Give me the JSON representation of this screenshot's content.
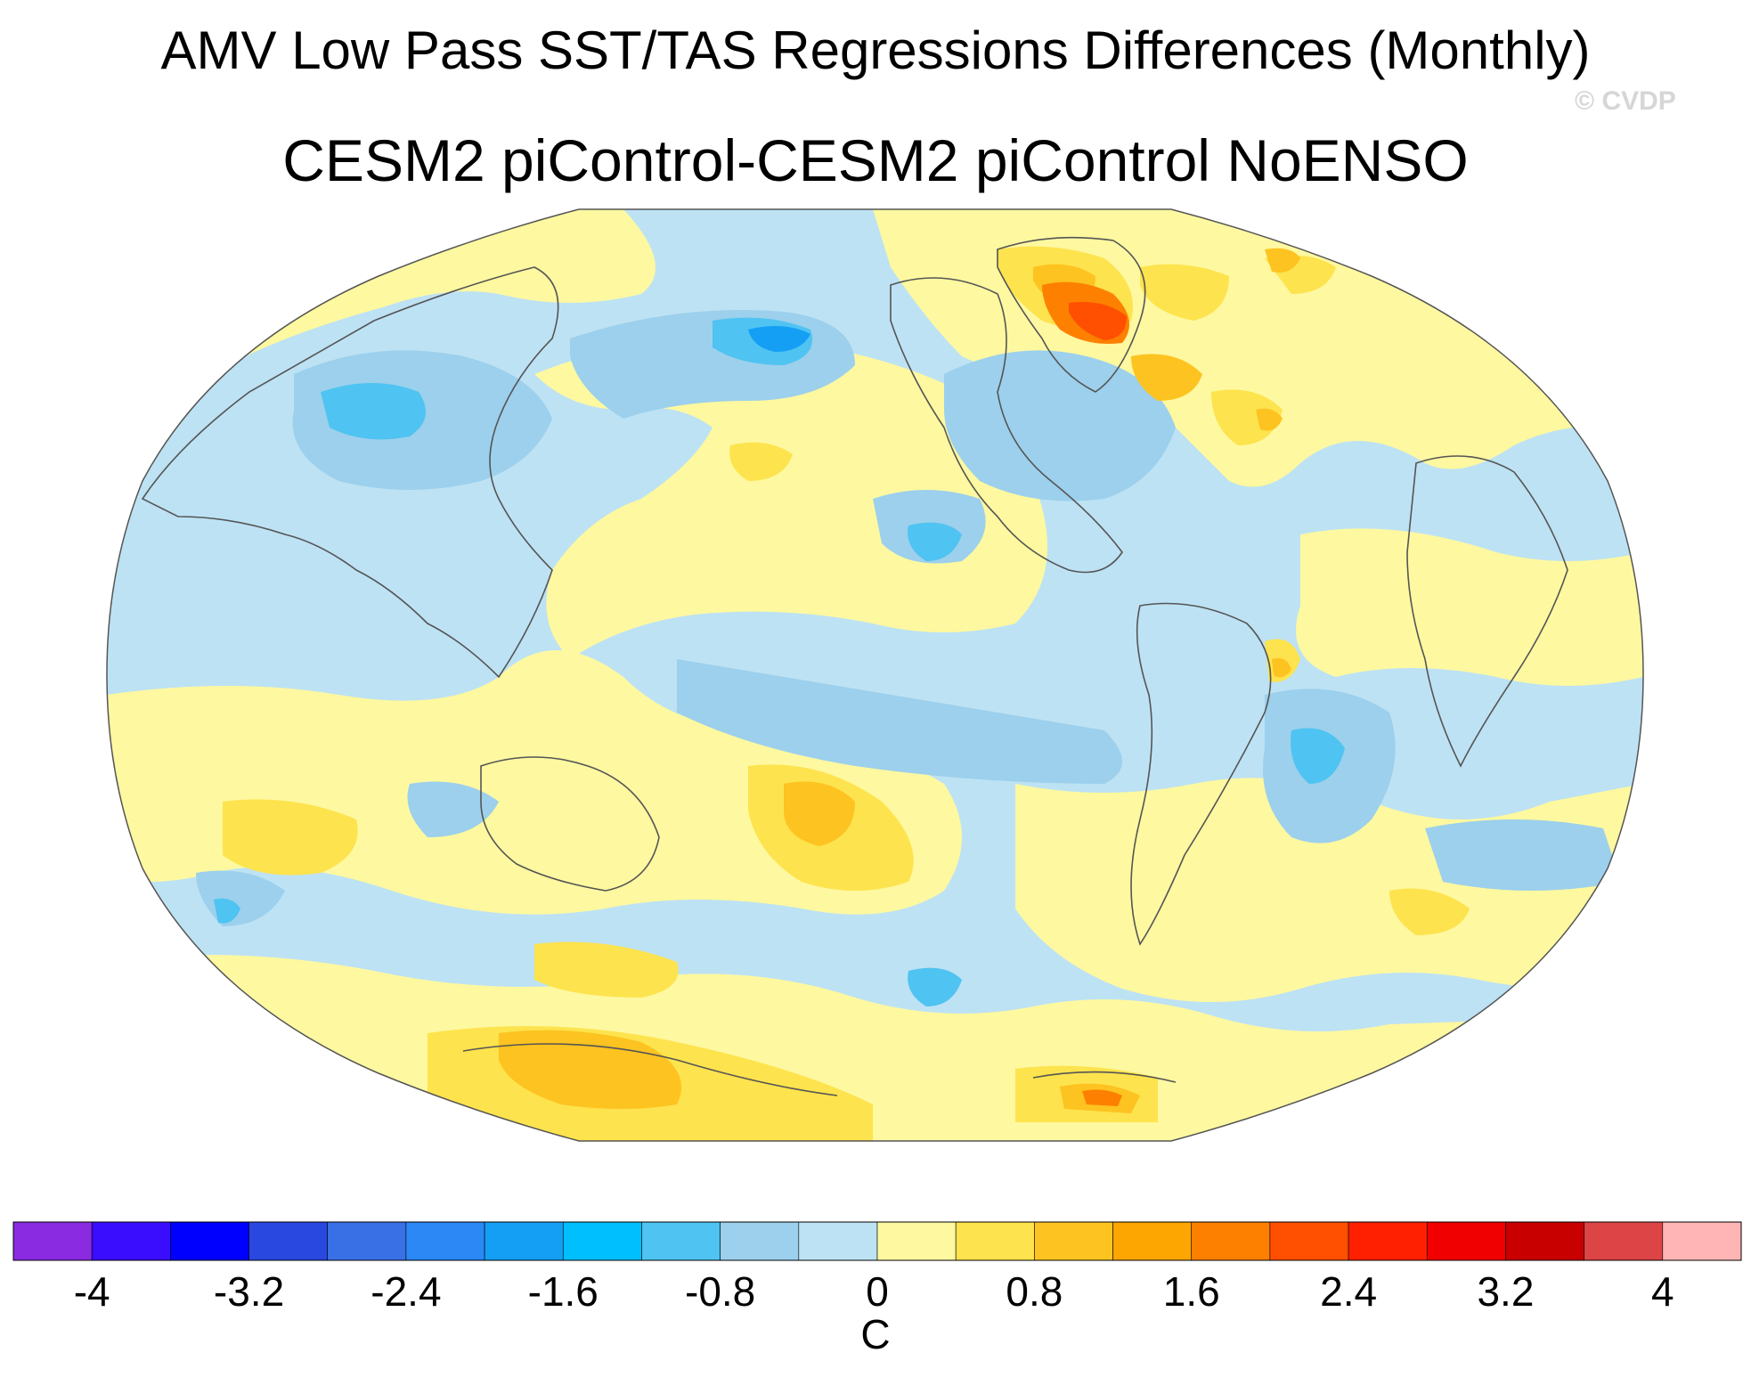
{
  "title_line1": "AMV Low Pass SST/TAS Regressions Differences (Monthly)",
  "title_line2": "CESM2 piControl-CESM2 piControl NoENSO",
  "watermark": "© CVDP",
  "colorbar": {
    "unit": "C",
    "colors": [
      "#8a2be2",
      "#3a0dff",
      "#0000ff",
      "#2948e0",
      "#3a70e6",
      "#2b88f5",
      "#149ff5",
      "#00bfff",
      "#4fc3f1",
      "#9cd0ec",
      "#bde2f4",
      "#fef8a0",
      "#fde34d",
      "#fdc320",
      "#fda500",
      "#fd8000",
      "#fe5000",
      "#fe2000",
      "#f00000",
      "#c80000",
      "#dc4445",
      "#ffb5b5"
    ],
    "tick_labels": [
      "-4",
      "-3.2",
      "-2.4",
      "-1.6",
      "-0.8",
      "0",
      "0.8",
      "1.6",
      "2.4",
      "3.2",
      "4"
    ],
    "min": -4.4,
    "max": 4.4,
    "step": 0.4
  },
  "map": {
    "projection": "robinson",
    "background_level_color": "#bde2f4",
    "regions": [
      {
        "name": "n-atlantic-warm",
        "value": 0.3,
        "color": "#fef8a0"
      },
      {
        "name": "s-ocean-warm",
        "value": 0.6,
        "color": "#fde34d"
      },
      {
        "name": "antarctic-warm",
        "value": 1.0,
        "color": "#fdc320"
      },
      {
        "name": "greenland-warm",
        "value": 1.6,
        "color": "#fd8000"
      },
      {
        "name": "greenland-hot",
        "value": 2.2,
        "color": "#fe5000"
      },
      {
        "name": "siberia-cold",
        "value": -0.6,
        "color": "#9cd0ec"
      },
      {
        "name": "bering-cold",
        "value": -1.6,
        "color": "#4fc3f1"
      },
      {
        "name": "brazil-cold",
        "value": -1.4,
        "color": "#4fc3f1"
      }
    ]
  }
}
